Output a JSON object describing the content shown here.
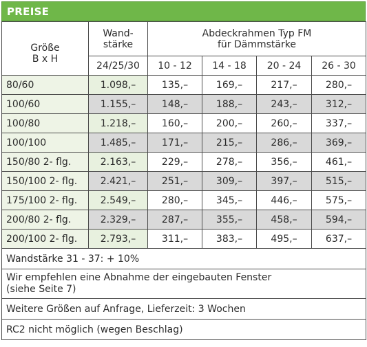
{
  "title": "PREISE",
  "header": {
    "size_label_1": "Größe",
    "size_label_2": "B x H",
    "wall_label_1": "Wand-",
    "wall_label_2": "stärke",
    "wall_sub": "24/25/30",
    "frame_label_1": "Abdeckrahmen Typ FM",
    "frame_label_2": "für Dämmstärke",
    "frame_cols": [
      "10 - 12",
      "14 - 18",
      "20 - 24",
      "26 - 30"
    ]
  },
  "rows": [
    {
      "size": "80/60",
      "wall": "1.098,–",
      "c": [
        "135,–",
        "169,–",
        "217,–",
        "280,–"
      ]
    },
    {
      "size": "100/60",
      "wall": "1.155,–",
      "c": [
        "148,–",
        "188,–",
        "243,–",
        "312,–"
      ]
    },
    {
      "size": "100/80",
      "wall": "1.218,–",
      "c": [
        "160,–",
        "200,–",
        "260,–",
        "337,–"
      ]
    },
    {
      "size": "100/100",
      "wall": "1.485,–",
      "c": [
        "171,–",
        "215,–",
        "286,–",
        "369,–"
      ]
    },
    {
      "size": "150/80 2- flg.",
      "wall": "2.163,–",
      "c": [
        "229,–",
        "278,–",
        "356,–",
        "461,–"
      ]
    },
    {
      "size": "150/100 2- flg.",
      "wall": "2.421,–",
      "c": [
        "251,–",
        "309,–",
        "397,–",
        "515,–"
      ]
    },
    {
      "size": "175/100 2- flg.",
      "wall": "2.549,–",
      "c": [
        "280,–",
        "345,–",
        "446,–",
        "575,–"
      ]
    },
    {
      "size": "200/80 2- flg.",
      "wall": "2.329,–",
      "c": [
        "287,–",
        "355,–",
        "458,–",
        "594,–"
      ]
    },
    {
      "size": "200/100 2- flg.",
      "wall": "2.793,–",
      "c": [
        "311,–",
        "383,–",
        "495,–",
        "637,–"
      ]
    }
  ],
  "notes": {
    "n1": "Wandstärke 31 - 37: + 10%",
    "n2a": "Wir empfehlen eine Abnahme der eingebauten Fenster",
    "n2b": "(siehe Seite 7)",
    "n3": "Weitere Größen auf Anfrage, Lieferzeit: 3 Wochen",
    "n4": "RC2 nicht möglich (wegen Beschlag)"
  },
  "colors": {
    "header_green": "#6fb749",
    "row_grey": "#d9d9d9",
    "light_green": "#e8f1df"
  }
}
